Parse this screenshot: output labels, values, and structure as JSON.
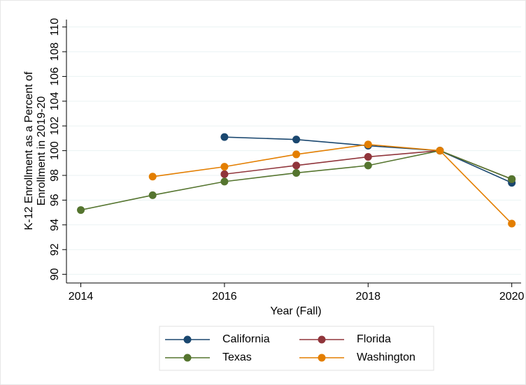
{
  "chart_data": {
    "type": "line",
    "x_label": "Year (Fall)",
    "y_label": [
      "K-12 Enrollment as a Percent of",
      "Enrollment in 2019-20"
    ],
    "x": [
      2014,
      2015,
      2016,
      2017,
      2018,
      2019,
      2020
    ],
    "series": [
      {
        "name": "California",
        "color": "#1a476f",
        "values": [
          null,
          null,
          101.1,
          100.9,
          100.4,
          100,
          97.4
        ]
      },
      {
        "name": "Florida",
        "color": "#90353b",
        "values": [
          null,
          null,
          98.1,
          98.8,
          99.5,
          100,
          97.7
        ]
      },
      {
        "name": "Texas",
        "color": "#55752f",
        "values": [
          95.2,
          96.4,
          97.5,
          98.2,
          98.8,
          100,
          97.7
        ]
      },
      {
        "name": "Washington",
        "color": "#e37e00",
        "values": [
          null,
          97.9,
          98.7,
          99.7,
          100.5,
          100,
          94.1
        ]
      }
    ],
    "xlim": [
      2013.8,
      2020.13
    ],
    "xticks": [
      2014,
      2016,
      2018,
      2020
    ],
    "ylim": [
      89.3,
      110.6
    ],
    "yticks": [
      90,
      92,
      94,
      96,
      98,
      100,
      102,
      104,
      106,
      108,
      110
    ],
    "grid": true
  }
}
